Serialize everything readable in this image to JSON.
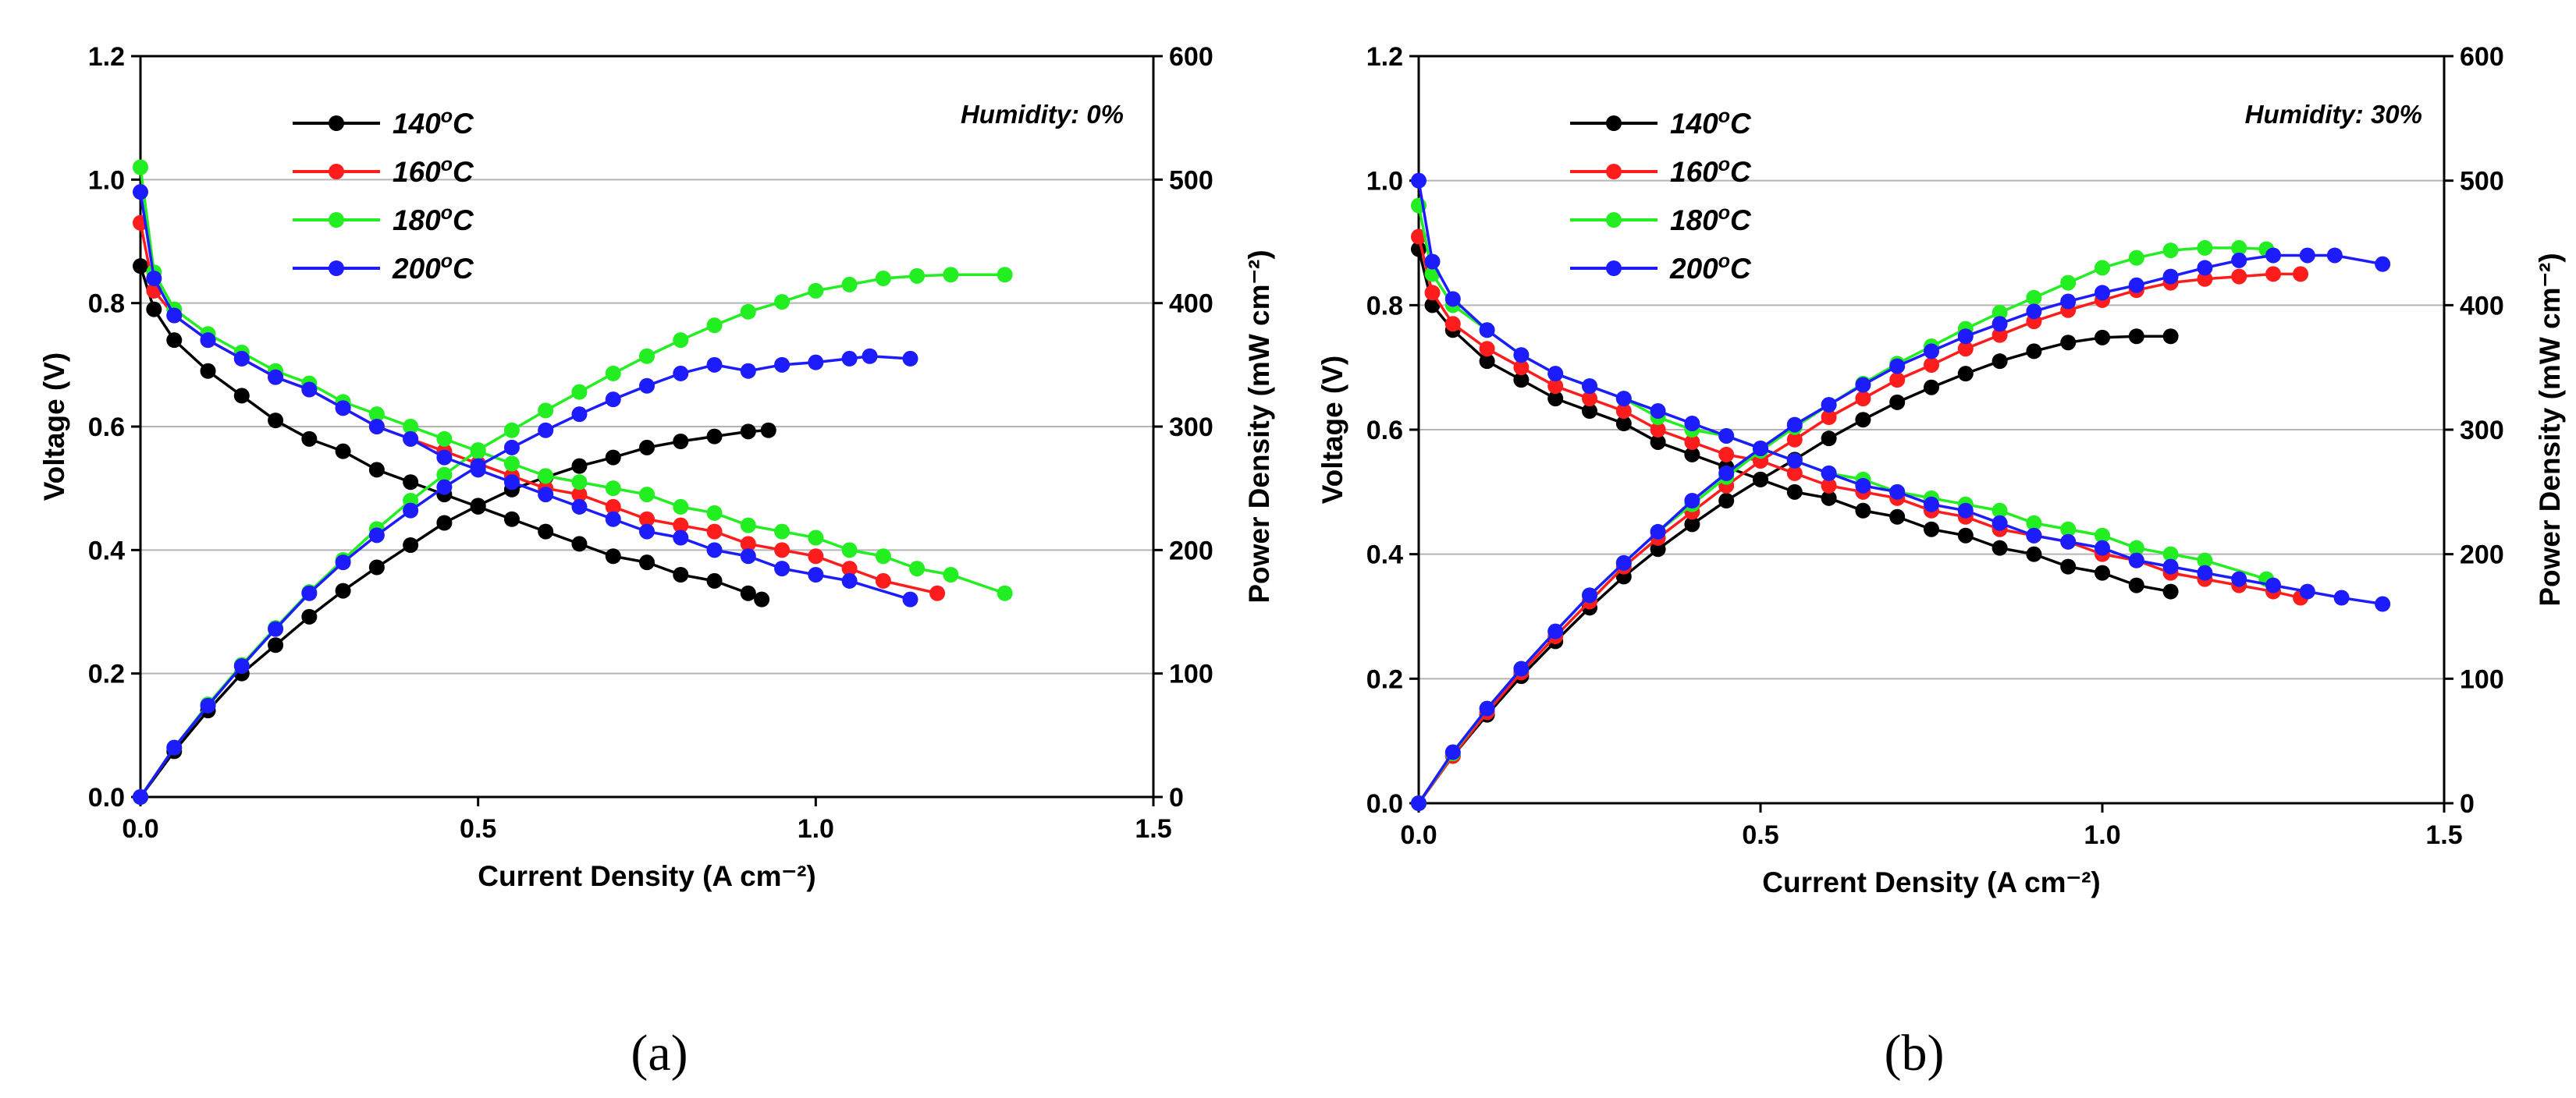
{
  "colors": {
    "s140": "#000000",
    "s160": "#ff1c1c",
    "s180": "#22ee22",
    "s200": "#1c1cff",
    "grid": "#b4b4b4"
  },
  "chart_data": [
    {
      "type": "line",
      "panel_label": "(a)",
      "annotation": "Humidity: 0%",
      "xlabel": "Current Density (A cm⁻²)",
      "ylabel": "Voltage (V)",
      "y2label": "Power Density (mW cm⁻²)",
      "xlim": [
        0,
        1.5
      ],
      "ylim": [
        0,
        1.2
      ],
      "y2lim": [
        0,
        600
      ],
      "xticks": [
        "0.0",
        "0.5",
        "1.0",
        "1.5"
      ],
      "yticks": [
        "0.0",
        "0.2",
        "0.4",
        "0.6",
        "0.8",
        "1.0",
        "1.2"
      ],
      "y2ticks": [
        "0",
        "100",
        "200",
        "300",
        "400",
        "500",
        "600"
      ],
      "grid": "horizontal",
      "legend_position": "top-left",
      "series": [
        {
          "name": "140",
          "color_key": "s140",
          "voltage_x": [
            0,
            0.02,
            0.05,
            0.1,
            0.15,
            0.2,
            0.25,
            0.3,
            0.35,
            0.4,
            0.45,
            0.5,
            0.55,
            0.6,
            0.65,
            0.7,
            0.75,
            0.8,
            0.85,
            0.9,
            0.92
          ],
          "voltage_y": [
            0.86,
            0.79,
            0.74,
            0.69,
            0.65,
            0.61,
            0.58,
            0.56,
            0.53,
            0.51,
            0.49,
            0.47,
            0.45,
            0.43,
            0.41,
            0.39,
            0.38,
            0.36,
            0.35,
            0.33,
            0.32
          ],
          "power_x": [
            0,
            0.05,
            0.1,
            0.15,
            0.2,
            0.25,
            0.3,
            0.35,
            0.4,
            0.45,
            0.5,
            0.55,
            0.6,
            0.65,
            0.7,
            0.75,
            0.8,
            0.85,
            0.9,
            0.93
          ],
          "power_y": [
            0,
            37,
            70,
            100,
            123,
            146,
            167,
            186,
            204,
            222,
            236,
            249,
            259,
            268,
            275,
            283,
            288,
            292,
            296,
            297
          ]
        },
        {
          "name": "160",
          "color_key": "s160",
          "voltage_x": [
            0,
            0.02,
            0.05,
            0.1,
            0.15,
            0.2,
            0.25,
            0.3,
            0.35,
            0.4,
            0.45,
            0.5,
            0.55,
            0.6,
            0.65,
            0.7,
            0.75,
            0.8,
            0.85,
            0.9,
            0.95,
            1.0,
            1.05,
            1.1,
            1.18
          ],
          "voltage_y": [
            0.93,
            0.82,
            0.78,
            0.74,
            0.71,
            0.68,
            0.66,
            0.63,
            0.6,
            0.58,
            0.56,
            0.54,
            0.52,
            0.5,
            0.49,
            0.47,
            0.45,
            0.44,
            0.43,
            0.41,
            0.4,
            0.39,
            0.37,
            0.35,
            0.33
          ]
        },
        {
          "name": "180",
          "color_key": "s180",
          "voltage_x": [
            0,
            0.02,
            0.05,
            0.1,
            0.15,
            0.2,
            0.25,
            0.3,
            0.35,
            0.4,
            0.45,
            0.5,
            0.55,
            0.6,
            0.65,
            0.7,
            0.75,
            0.8,
            0.85,
            0.9,
            0.95,
            1.0,
            1.05,
            1.1,
            1.15,
            1.2,
            1.28
          ],
          "voltage_y": [
            1.02,
            0.85,
            0.79,
            0.75,
            0.72,
            0.69,
            0.67,
            0.64,
            0.62,
            0.6,
            0.58,
            0.56,
            0.54,
            0.52,
            0.51,
            0.5,
            0.49,
            0.47,
            0.46,
            0.44,
            0.43,
            0.42,
            0.4,
            0.39,
            0.37,
            0.36,
            0.33
          ],
          "power_x": [
            0,
            0.05,
            0.1,
            0.15,
            0.2,
            0.25,
            0.3,
            0.35,
            0.4,
            0.45,
            0.5,
            0.55,
            0.6,
            0.65,
            0.7,
            0.75,
            0.8,
            0.85,
            0.9,
            0.95,
            1.0,
            1.05,
            1.1,
            1.15,
            1.2,
            1.28
          ],
          "power_y": [
            0,
            40,
            75,
            107,
            137,
            166,
            192,
            217,
            240,
            261,
            281,
            297,
            313,
            328,
            343,
            357,
            370,
            382,
            393,
            401,
            410,
            415,
            420,
            422,
            423,
            423
          ]
        },
        {
          "name": "200",
          "color_key": "s200",
          "voltage_x": [
            0,
            0.02,
            0.05,
            0.1,
            0.15,
            0.2,
            0.25,
            0.3,
            0.35,
            0.4,
            0.45,
            0.5,
            0.55,
            0.6,
            0.65,
            0.7,
            0.75,
            0.8,
            0.85,
            0.9,
            0.95,
            1.0,
            1.05,
            1.14
          ],
          "voltage_y": [
            0.98,
            0.84,
            0.78,
            0.74,
            0.71,
            0.68,
            0.66,
            0.63,
            0.6,
            0.58,
            0.55,
            0.53,
            0.51,
            0.49,
            0.47,
            0.45,
            0.43,
            0.42,
            0.4,
            0.39,
            0.37,
            0.36,
            0.35,
            0.32
          ],
          "power_x": [
            0,
            0.05,
            0.1,
            0.15,
            0.2,
            0.25,
            0.3,
            0.35,
            0.4,
            0.45,
            0.5,
            0.55,
            0.6,
            0.65,
            0.7,
            0.75,
            0.8,
            0.85,
            0.9,
            0.95,
            1.0,
            1.05,
            1.08,
            1.14
          ],
          "power_y": [
            0,
            40,
            74,
            106,
            136,
            165,
            190,
            212,
            232,
            251,
            268,
            283,
            297,
            310,
            322,
            333,
            343,
            350,
            345,
            350,
            352,
            355,
            357,
            355
          ]
        }
      ]
    },
    {
      "type": "line",
      "panel_label": "(b)",
      "annotation": "Humidity: 30%",
      "xlabel": "Current Density (A cm⁻²)",
      "ylabel": "Voltage (V)",
      "y2label": "Power Density (mW cm⁻²)",
      "xlim": [
        0,
        1.5
      ],
      "ylim": [
        0,
        1.2
      ],
      "y2lim": [
        0,
        600
      ],
      "xticks": [
        "0.0",
        "0.5",
        "1.0",
        "1.5"
      ],
      "yticks": [
        "0.0",
        "0.2",
        "0.4",
        "0.6",
        "0.8",
        "1.0",
        "1.2"
      ],
      "y2ticks": [
        "0",
        "100",
        "200",
        "300",
        "400",
        "500",
        "600"
      ],
      "grid": "horizontal",
      "legend_position": "top-left",
      "series": [
        {
          "name": "140",
          "color_key": "s140",
          "voltage_x": [
            0,
            0.02,
            0.05,
            0.1,
            0.15,
            0.2,
            0.25,
            0.3,
            0.35,
            0.4,
            0.45,
            0.5,
            0.55,
            0.6,
            0.65,
            0.7,
            0.75,
            0.8,
            0.85,
            0.9,
            0.95,
            1.0,
            1.05,
            1.1
          ],
          "voltage_y": [
            0.89,
            0.8,
            0.76,
            0.71,
            0.68,
            0.65,
            0.63,
            0.61,
            0.58,
            0.56,
            0.54,
            0.52,
            0.5,
            0.49,
            0.47,
            0.46,
            0.44,
            0.43,
            0.41,
            0.4,
            0.38,
            0.37,
            0.35,
            0.34
          ],
          "power_x": [
            0,
            0.05,
            0.1,
            0.15,
            0.2,
            0.25,
            0.3,
            0.35,
            0.4,
            0.45,
            0.5,
            0.55,
            0.6,
            0.65,
            0.7,
            0.75,
            0.8,
            0.85,
            0.9,
            0.95,
            1.0,
            1.05,
            1.1
          ],
          "power_y": [
            0,
            38,
            71,
            102,
            130,
            157,
            182,
            204,
            224,
            243,
            260,
            276,
            293,
            308,
            322,
            334,
            345,
            355,
            363,
            370,
            374,
            375,
            375
          ]
        },
        {
          "name": "160",
          "color_key": "s160",
          "voltage_x": [
            0,
            0.02,
            0.05,
            0.1,
            0.15,
            0.2,
            0.25,
            0.3,
            0.35,
            0.4,
            0.45,
            0.5,
            0.55,
            0.6,
            0.65,
            0.7,
            0.75,
            0.8,
            0.85,
            0.9,
            0.95,
            1.0,
            1.05,
            1.1,
            1.15,
            1.2,
            1.25,
            1.29
          ],
          "voltage_y": [
            0.91,
            0.82,
            0.77,
            0.73,
            0.7,
            0.67,
            0.65,
            0.63,
            0.6,
            0.58,
            0.56,
            0.55,
            0.53,
            0.51,
            0.5,
            0.49,
            0.47,
            0.46,
            0.44,
            0.43,
            0.42,
            0.4,
            0.39,
            0.37,
            0.36,
            0.35,
            0.34,
            0.33
          ],
          "power_x": [
            0,
            0.05,
            0.1,
            0.15,
            0.2,
            0.25,
            0.3,
            0.35,
            0.4,
            0.45,
            0.5,
            0.55,
            0.6,
            0.65,
            0.7,
            0.75,
            0.8,
            0.85,
            0.9,
            0.95,
            1.0,
            1.05,
            1.1,
            1.15,
            1.2,
            1.25,
            1.29
          ],
          "power_y": [
            0,
            38,
            73,
            105,
            134,
            162,
            190,
            213,
            234,
            255,
            275,
            292,
            310,
            325,
            340,
            352,
            365,
            376,
            387,
            396,
            404,
            412,
            418,
            421,
            423,
            425,
            425
          ]
        },
        {
          "name": "180",
          "color_key": "s180",
          "voltage_x": [
            0,
            0.02,
            0.05,
            0.1,
            0.15,
            0.2,
            0.25,
            0.3,
            0.35,
            0.4,
            0.45,
            0.5,
            0.55,
            0.6,
            0.65,
            0.7,
            0.75,
            0.8,
            0.85,
            0.9,
            0.95,
            1.0,
            1.05,
            1.1,
            1.15,
            1.24
          ],
          "voltage_y": [
            0.96,
            0.85,
            0.8,
            0.76,
            0.72,
            0.69,
            0.67,
            0.65,
            0.62,
            0.6,
            0.59,
            0.57,
            0.55,
            0.53,
            0.52,
            0.5,
            0.49,
            0.48,
            0.47,
            0.45,
            0.44,
            0.43,
            0.41,
            0.4,
            0.39,
            0.36
          ],
          "power_x": [
            0,
            0.05,
            0.1,
            0.15,
            0.2,
            0.25,
            0.3,
            0.35,
            0.4,
            0.45,
            0.5,
            0.55,
            0.6,
            0.65,
            0.7,
            0.75,
            0.8,
            0.85,
            0.9,
            0.95,
            1.0,
            1.05,
            1.1,
            1.15,
            1.2,
            1.24
          ],
          "power_y": [
            0,
            40,
            76,
            108,
            138,
            167,
            193,
            218,
            240,
            262,
            283,
            302,
            320,
            337,
            353,
            367,
            381,
            394,
            406,
            418,
            430,
            438,
            444,
            446,
            446,
            445
          ]
        },
        {
          "name": "200",
          "color_key": "s200",
          "voltage_x": [
            0,
            0.02,
            0.05,
            0.1,
            0.15,
            0.2,
            0.25,
            0.3,
            0.35,
            0.4,
            0.45,
            0.5,
            0.55,
            0.6,
            0.65,
            0.7,
            0.75,
            0.8,
            0.85,
            0.9,
            0.95,
            1.0,
            1.05,
            1.1,
            1.15,
            1.2,
            1.25,
            1.3,
            1.35,
            1.41
          ],
          "voltage_y": [
            1.0,
            0.87,
            0.81,
            0.76,
            0.72,
            0.69,
            0.67,
            0.65,
            0.63,
            0.61,
            0.59,
            0.57,
            0.55,
            0.53,
            0.51,
            0.5,
            0.48,
            0.47,
            0.45,
            0.43,
            0.42,
            0.41,
            0.39,
            0.38,
            0.37,
            0.36,
            0.35,
            0.34,
            0.33,
            0.32
          ],
          "power_x": [
            0,
            0.05,
            0.1,
            0.15,
            0.2,
            0.25,
            0.3,
            0.35,
            0.4,
            0.45,
            0.5,
            0.55,
            0.6,
            0.65,
            0.7,
            0.75,
            0.8,
            0.85,
            0.9,
            0.95,
            1.0,
            1.05,
            1.1,
            1.15,
            1.2,
            1.25,
            1.3,
            1.34,
            1.41
          ],
          "power_y": [
            0,
            41,
            76,
            108,
            138,
            167,
            193,
            218,
            243,
            265,
            285,
            304,
            320,
            336,
            351,
            363,
            375,
            385,
            395,
            403,
            410,
            416,
            423,
            430,
            436,
            440,
            440,
            440,
            433
          ]
        }
      ]
    }
  ]
}
